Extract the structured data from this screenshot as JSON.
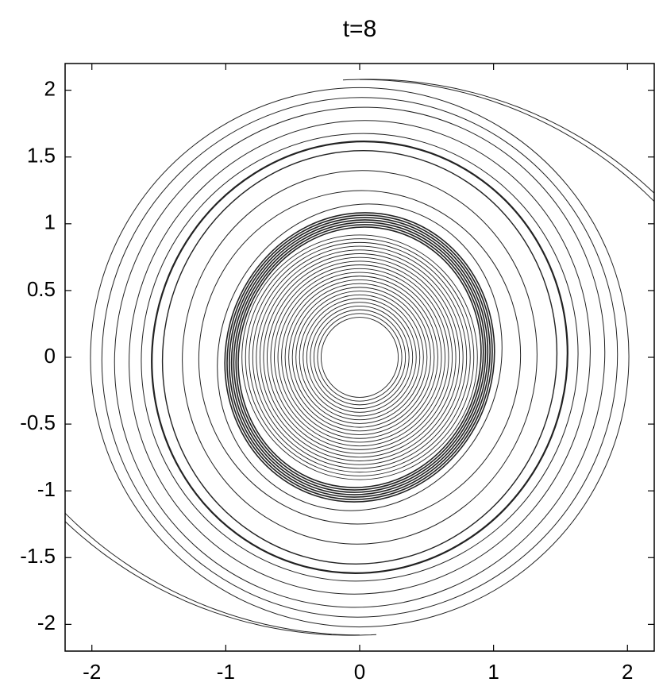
{
  "chart_data": {
    "type": "contour",
    "title": "t=8",
    "xlim": [
      -2.2,
      2.2
    ],
    "ylim": [
      -2.2,
      2.2
    ],
    "xticks": [
      -2,
      -1,
      0,
      1,
      2
    ],
    "yticks": [
      -2,
      -1.5,
      -1,
      -0.5,
      0,
      0.5,
      1,
      1.5,
      2
    ],
    "color": "#222222"
  }
}
